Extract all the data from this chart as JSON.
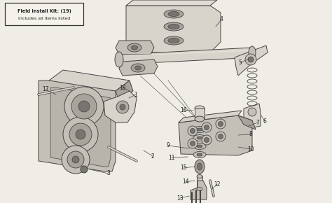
{
  "bg_color": "#f0ede6",
  "line_color": "#444444",
  "text_color": "#222222",
  "fill_light": "#d8d4cc",
  "fill_mid": "#c4c0b8",
  "fill_dark": "#a8a49c",
  "fill_inner": "#787470",
  "box_text_line1": "Field Install Kit: (19)",
  "box_text_line2": "Includes all items listed",
  "figsize": [
    4.74,
    2.9
  ],
  "dpi": 100
}
